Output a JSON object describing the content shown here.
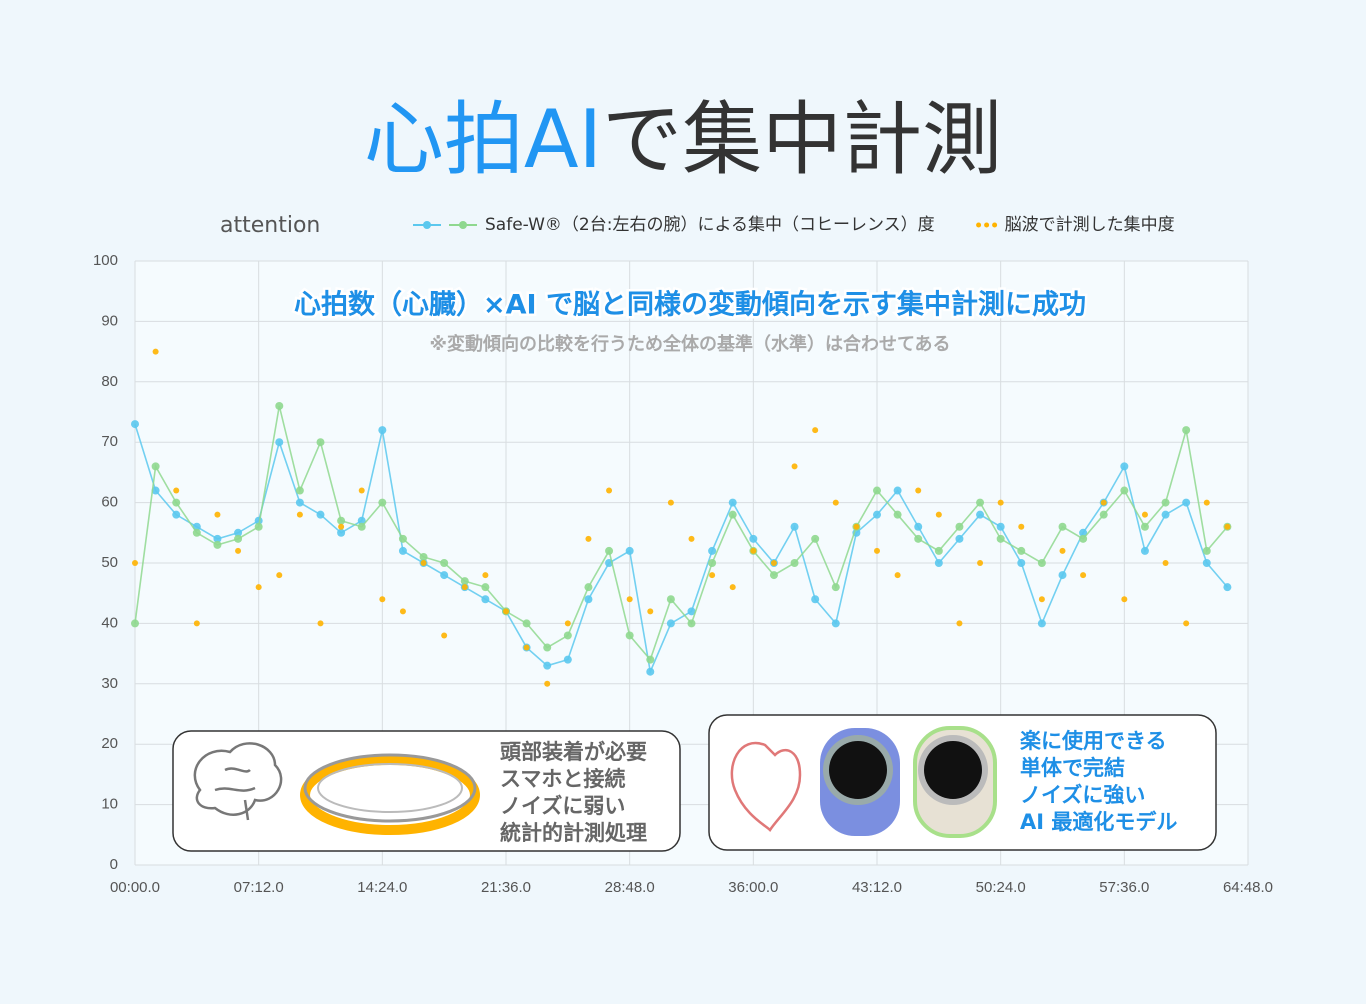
{
  "title_parts": [
    "心拍AI",
    "で集中計測"
  ],
  "chart_data": {
    "type": "line",
    "y_label": "attention",
    "headline": "心拍数（心臓）×AI で脳と同様の変動傾向を示す集中計測に成功",
    "note": "※変動傾向の比較を行うため全体の基準（水準）は合わせてある",
    "x": [
      0,
      72,
      144,
      216,
      288,
      360,
      432,
      504,
      576,
      648,
      720,
      792,
      864,
      936,
      1008,
      1080,
      1152,
      1224,
      1296,
      1368,
      1440,
      1512,
      1584,
      1656,
      1728,
      1800,
      1872,
      1944,
      2016,
      2088,
      2160,
      2232,
      2304,
      2376,
      2448,
      2520,
      2592,
      2664,
      2736,
      2808,
      2880,
      2952,
      3024,
      3096,
      3168,
      3240,
      3312,
      3384,
      3456,
      3528,
      3600,
      3672,
      3744,
      3816
    ],
    "xlim": [
      0,
      3888
    ],
    "xticks": [
      {
        "value": 0,
        "label": "00:00.0"
      },
      {
        "value": 432,
        "label": "07:12.0"
      },
      {
        "value": 864,
        "label": "14:24.0"
      },
      {
        "value": 1296,
        "label": "21:36.0"
      },
      {
        "value": 1728,
        "label": "28:48.0"
      },
      {
        "value": 2160,
        "label": "36:00.0"
      },
      {
        "value": 2592,
        "label": "43:12.0"
      },
      {
        "value": 3024,
        "label": "50:24.0"
      },
      {
        "value": 3456,
        "label": "57:36.0"
      },
      {
        "value": 3888,
        "label": "64:48.0"
      }
    ],
    "ylim": [
      0,
      100
    ],
    "yticks": [
      0,
      10,
      20,
      30,
      40,
      50,
      60,
      70,
      80,
      90,
      100
    ],
    "grid": true,
    "series": [
      {
        "name": "Safe-W®（2台:左右の腕）による集中（コヒーレンス）度",
        "color": "#5bc8ee",
        "line": true,
        "values": [
          73,
          62,
          58,
          56,
          54,
          55,
          57,
          70,
          60,
          58,
          55,
          57,
          72,
          52,
          50,
          48,
          46,
          44,
          42,
          36,
          33,
          34,
          44,
          50,
          52,
          32,
          40,
          42,
          52,
          60,
          54,
          50,
          56,
          44,
          40,
          55,
          58,
          62,
          56,
          50,
          54,
          58,
          56,
          50,
          40,
          48,
          55,
          60,
          66,
          52,
          58,
          60,
          50,
          46
        ]
      },
      {
        "color": "#8fd88f",
        "line": true,
        "values": [
          40,
          66,
          60,
          55,
          53,
          54,
          56,
          76,
          62,
          70,
          57,
          56,
          60,
          54,
          51,
          50,
          47,
          46,
          42,
          40,
          36,
          38,
          46,
          52,
          38,
          34,
          44,
          40,
          50,
          58,
          52,
          48,
          50,
          54,
          46,
          56,
          62,
          58,
          54,
          52,
          56,
          60,
          54,
          52,
          50,
          56,
          54,
          58,
          62,
          56,
          60,
          72,
          52,
          56
        ]
      },
      {
        "name": "脳波で計測した集中度",
        "color": "#ffb300",
        "line": false,
        "values": [
          50,
          85,
          62,
          40,
          58,
          52,
          46,
          48,
          58,
          40,
          56,
          62,
          44,
          42,
          50,
          38,
          46,
          48,
          42,
          36,
          30,
          40,
          54,
          62,
          44,
          42,
          60,
          54,
          48,
          46,
          52,
          50,
          66,
          72,
          60,
          56,
          52,
          48,
          62,
          58,
          40,
          50,
          60,
          56,
          44,
          52,
          48,
          60,
          44,
          58,
          50,
          40,
          60,
          56
        ]
      }
    ]
  },
  "panels": [
    {
      "lines": [
        "頭部装着が必要",
        "スマホと接続",
        "ノイズに弱い",
        "統計的計測処理"
      ]
    },
    {
      "lines": [
        "楽に使用できる",
        "単体で完結",
        "ノイズに強い",
        "AI 最適化モデル"
      ]
    }
  ]
}
